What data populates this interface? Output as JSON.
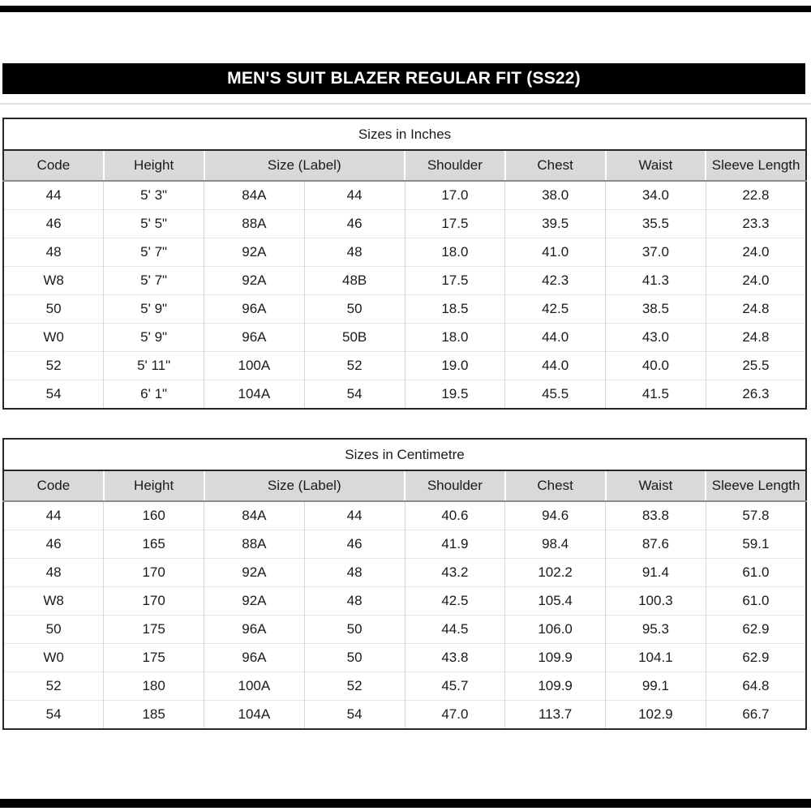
{
  "page": {
    "title": "MEN'S SUIT BLAZER REGULAR FIT (SS22)"
  },
  "columns": [
    "Code",
    "Height",
    "Size (Label)",
    "Shoulder",
    "Chest",
    "Waist",
    "Sleeve Length"
  ],
  "tables": [
    {
      "caption": "Sizes in Inches",
      "rows": [
        [
          "44",
          "5' 3\"",
          "84A",
          "44",
          "17.0",
          "38.0",
          "34.0",
          "22.8"
        ],
        [
          "46",
          "5' 5\"",
          "88A",
          "46",
          "17.5",
          "39.5",
          "35.5",
          "23.3"
        ],
        [
          "48",
          "5' 7\"",
          "92A",
          "48",
          "18.0",
          "41.0",
          "37.0",
          "24.0"
        ],
        [
          "W8",
          "5' 7\"",
          "92A",
          "48B",
          "17.5",
          "42.3",
          "41.3",
          "24.0"
        ],
        [
          "50",
          "5' 9\"",
          "96A",
          "50",
          "18.5",
          "42.5",
          "38.5",
          "24.8"
        ],
        [
          "W0",
          "5' 9\"",
          "96A",
          "50B",
          "18.0",
          "44.0",
          "43.0",
          "24.8"
        ],
        [
          "52",
          "5' 11\"",
          "100A",
          "52",
          "19.0",
          "44.0",
          "40.0",
          "25.5"
        ],
        [
          "54",
          "6' 1\"",
          "104A",
          "54",
          "19.5",
          "45.5",
          "41.5",
          "26.3"
        ]
      ]
    },
    {
      "caption": "Sizes in Centimetre",
      "rows": [
        [
          "44",
          "160",
          "84A",
          "44",
          "40.6",
          "94.6",
          "83.8",
          "57.8"
        ],
        [
          "46",
          "165",
          "88A",
          "46",
          "41.9",
          "98.4",
          "87.6",
          "59.1"
        ],
        [
          "48",
          "170",
          "92A",
          "48",
          "43.2",
          "102.2",
          "91.4",
          "61.0"
        ],
        [
          "W8",
          "170",
          "92A",
          "48",
          "42.5",
          "105.4",
          "100.3",
          "61.0"
        ],
        [
          "50",
          "175",
          "96A",
          "50",
          "44.5",
          "106.0",
          "95.3",
          "62.9"
        ],
        [
          "W0",
          "175",
          "96A",
          "50",
          "43.8",
          "109.9",
          "104.1",
          "62.9"
        ],
        [
          "52",
          "180",
          "100A",
          "52",
          "45.7",
          "109.9",
          "99.1",
          "64.8"
        ],
        [
          "54",
          "185",
          "104A",
          "54",
          "47.0",
          "113.7",
          "102.9",
          "66.7"
        ]
      ]
    }
  ],
  "colors": {
    "banner_bg": "#000000",
    "banner_text": "#ffffff",
    "header_bg": "#d9d9d9",
    "border_dark": "#262626",
    "grid_light": "#d6d6d6"
  }
}
